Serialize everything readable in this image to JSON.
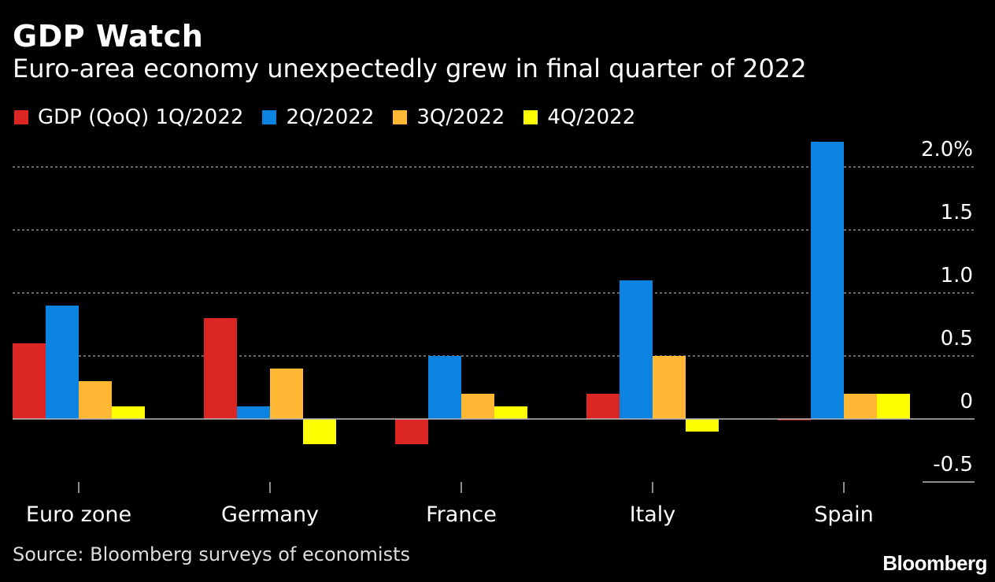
{
  "title": "GDP Watch",
  "subtitle": "Euro-area economy unexpectedly grew in final quarter of 2022",
  "source": "Source: Bloomberg surveys of economists",
  "logo": "Bloomberg",
  "colors": {
    "background": "#000000",
    "q1": "#dc2624",
    "q2": "#0a84e0",
    "q3": "#ffb734",
    "q4": "#ffff00",
    "grid": "#8a8a8a",
    "axis": "#bbbbbb"
  },
  "legend": [
    {
      "label": "GDP (QoQ) 1Q/2022",
      "color": "#dc2624"
    },
    {
      "label": "2Q/2022",
      "color": "#0a84e0"
    },
    {
      "label": "3Q/2022",
      "color": "#ffb734"
    },
    {
      "label": "4Q/2022",
      "color": "#ffff00"
    }
  ],
  "chart_data": {
    "type": "bar",
    "title": "GDP Watch",
    "subtitle": "Euro-area economy unexpectedly grew in final quarter of 2022",
    "categories": [
      "Euro zone",
      "Germany",
      "France",
      "Italy",
      "Spain"
    ],
    "series": [
      {
        "name": "GDP (QoQ) 1Q/2022",
        "values": [
          0.6,
          0.8,
          -0.2,
          0.2,
          -0.01
        ]
      },
      {
        "name": "2Q/2022",
        "values": [
          0.9,
          0.1,
          0.5,
          1.1,
          2.2
        ]
      },
      {
        "name": "3Q/2022",
        "values": [
          0.3,
          0.4,
          0.2,
          0.5,
          0.2
        ]
      },
      {
        "name": "4Q/2022",
        "values": [
          0.1,
          -0.2,
          0.1,
          -0.1,
          0.2
        ]
      }
    ],
    "ylim": [
      -0.5,
      2.0
    ],
    "yticks": [
      {
        "value": 2.0,
        "label": "2.0%"
      },
      {
        "value": 1.5,
        "label": "1.5"
      },
      {
        "value": 1.0,
        "label": "1.0"
      },
      {
        "value": 0.5,
        "label": "0.5"
      },
      {
        "value": 0.0,
        "label": "0"
      },
      {
        "value": -0.5,
        "label": "-0.5"
      }
    ],
    "xlabel": "",
    "ylabel": "",
    "grid": true,
    "legend_position": "top-left",
    "y_axis_side": "right"
  }
}
